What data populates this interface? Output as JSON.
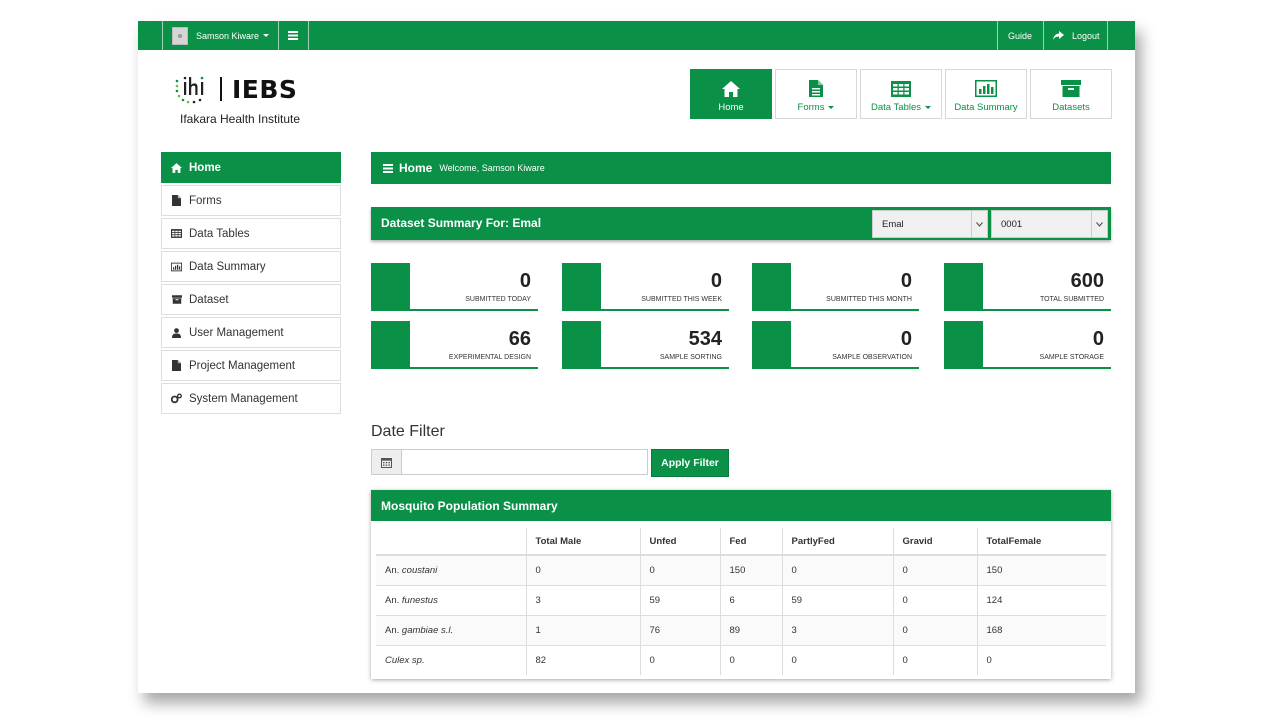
{
  "topbar": {
    "user_name": "Samson Kiware",
    "guide": "Guide",
    "logout": "Logout"
  },
  "logo": {
    "brand": "IEBS",
    "institute": "Ifakara Health Institute"
  },
  "nav_tiles": [
    {
      "label": "Home",
      "icon": "home-icon"
    },
    {
      "label": "Forms",
      "icon": "document-icon"
    },
    {
      "label": "Data Tables",
      "icon": "table-icon"
    },
    {
      "label": "Data Summary",
      "icon": "bar-chart-icon"
    },
    {
      "label": "Datasets",
      "icon": "archive-icon"
    }
  ],
  "sidebar": {
    "items": [
      {
        "label": "Home",
        "icon": "home-icon"
      },
      {
        "label": "Forms",
        "icon": "document-icon"
      },
      {
        "label": "Data Tables",
        "icon": "table-icon"
      },
      {
        "label": "Data Summary",
        "icon": "bar-chart-icon"
      },
      {
        "label": "Dataset",
        "icon": "archive-icon"
      },
      {
        "label": "User Management",
        "icon": "user-icon"
      },
      {
        "label": "Project Management",
        "icon": "document-icon"
      },
      {
        "label": "System Management",
        "icon": "gears-icon"
      }
    ]
  },
  "home_bar": {
    "title": "Home",
    "welcome": "Welcome, Samson Kiware"
  },
  "dataset_bar": {
    "title": "Dataset Summary For: Emal",
    "select_dataset": "Emal",
    "select_code": "0001"
  },
  "cards": [
    {
      "value": "0",
      "label": "SUBMITTED TODAY"
    },
    {
      "value": "0",
      "label": "SUBMITTED THIS WEEK"
    },
    {
      "value": "0",
      "label": "SUBMITTED THIS MONTH"
    },
    {
      "value": "600",
      "label": "TOTAL SUBMITTED"
    },
    {
      "value": "66",
      "label": "EXPERIMENTAL DESIGN"
    },
    {
      "value": "534",
      "label": "SAMPLE SORTING"
    },
    {
      "value": "0",
      "label": "SAMPLE OBSERVATION"
    },
    {
      "value": "0",
      "label": "SAMPLE STORAGE"
    }
  ],
  "date_filter": {
    "title": "Date Filter",
    "input_value": "",
    "apply_label": "Apply Filter"
  },
  "mosquito": {
    "title": "Mosquito Population Summary",
    "columns": [
      "",
      "Total Male",
      "Unfed",
      "Fed",
      "PartlyFed",
      "Gravid",
      "TotalFemale"
    ],
    "rows": [
      {
        "genus": "An.",
        "species": "coustani",
        "values": [
          "0",
          "0",
          "150",
          "0",
          "0",
          "150"
        ]
      },
      {
        "genus": "An.",
        "species": "funestus",
        "values": [
          "3",
          "59",
          "6",
          "59",
          "0",
          "124"
        ]
      },
      {
        "genus": "An.",
        "species": "gambiae s.l.",
        "values": [
          "1",
          "76",
          "89",
          "3",
          "0",
          "168"
        ]
      },
      {
        "genus": "",
        "species": "Culex sp.",
        "values": [
          "82",
          "0",
          "0",
          "0",
          "0",
          "0"
        ]
      }
    ]
  },
  "colors": {
    "brand_green": "#0a9147"
  }
}
